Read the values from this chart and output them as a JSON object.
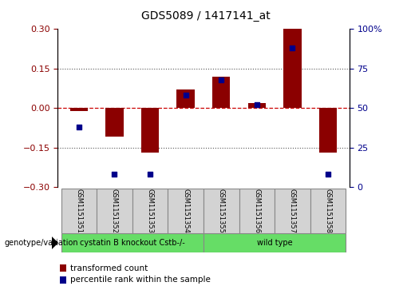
{
  "title": "GDS5089 / 1417141_at",
  "samples": [
    "GSM1151351",
    "GSM1151352",
    "GSM1151353",
    "GSM1151354",
    "GSM1151355",
    "GSM1151356",
    "GSM1151357",
    "GSM1151358"
  ],
  "transformed_count": [
    -0.01,
    -0.11,
    -0.17,
    0.07,
    0.12,
    0.02,
    0.3,
    -0.17
  ],
  "percentile_rank": [
    38,
    8,
    8,
    58,
    68,
    52,
    88,
    8
  ],
  "ylim_left": [
    -0.3,
    0.3
  ],
  "ylim_right": [
    0,
    100
  ],
  "yticks_left": [
    -0.3,
    -0.15,
    0,
    0.15,
    0.3
  ],
  "yticks_right": [
    0,
    25,
    50,
    75,
    100
  ],
  "bar_color": "#8B0000",
  "scatter_color": "#00008B",
  "group1_label": "cystatin B knockout Cstb-/-",
  "group2_label": "wild type",
  "group1_indices": [
    0,
    1,
    2,
    3
  ],
  "group2_indices": [
    4,
    5,
    6,
    7
  ],
  "group_color": "#66DD66",
  "group_row_label": "genotype/variation",
  "legend_bar_label": "transformed count",
  "legend_scatter_label": "percentile rank within the sample",
  "bar_width": 0.5,
  "hline_color": "#CC0000",
  "dotted_color": "#555555",
  "label_box_color": "#D3D3D3",
  "fig_width": 5.15,
  "fig_height": 3.63
}
